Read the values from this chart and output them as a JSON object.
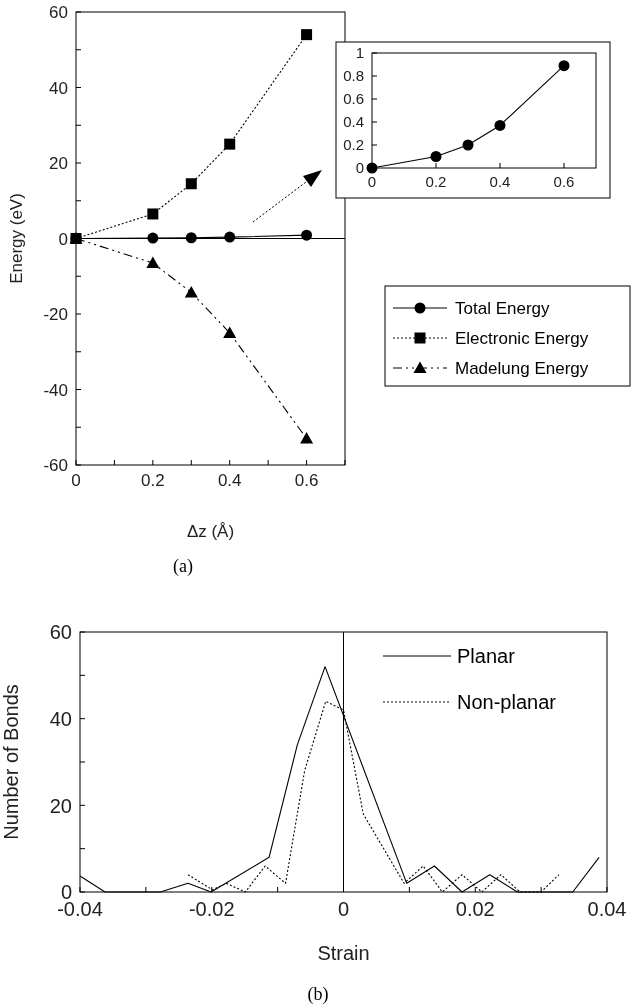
{
  "chart_data": [
    {
      "type": "line",
      "xlabel": "Δz (Å)",
      "ylabel": "Energy (eV)",
      "x": [
        0,
        0.2,
        0.3,
        0.4,
        0.6
      ],
      "xlim": [
        0,
        0.7
      ],
      "xticks": [
        0,
        {
          "value": 0.1,
          "label": null
        },
        0.2,
        {
          "value": 0.3,
          "label": null
        },
        0.4,
        {
          "value": 0.5,
          "label": null
        },
        0.6,
        {
          "value": 0.7,
          "label": null
        }
      ],
      "ylim": [
        -60,
        60
      ],
      "yticks": [
        -60,
        {
          "value": -50,
          "label": null
        },
        -40,
        {
          "value": -30,
          "label": null
        },
        -20,
        {
          "value": -10,
          "label": null
        },
        0,
        {
          "value": 10,
          "label": null
        },
        20,
        {
          "value": 30,
          "label": null
        },
        40,
        {
          "value": 50,
          "label": null
        },
        60
      ],
      "legend": "right",
      "grid": false,
      "series": [
        {
          "name": "Total Energy",
          "color": "#000000",
          "marker": "circle",
          "line_style": "solid",
          "values": [
            0,
            0.1,
            0.2,
            0.37,
            0.89
          ]
        },
        {
          "name": "Electronic Energy",
          "color": "#000000",
          "marker": "square",
          "line_style": "dotted",
          "values": [
            0,
            6.5,
            14.5,
            25,
            54
          ]
        },
        {
          "name": "Madelung Energy",
          "color": "#000000",
          "marker": "triangle",
          "line_style": "dashed",
          "values": [
            0,
            -6.5,
            -14.3,
            -25,
            -53
          ]
        }
      ],
      "ref_lines": [
        {
          "axis": "y",
          "value": 0,
          "color": "#000000",
          "line_style": "solid"
        }
      ],
      "annotations": [
        "(a)"
      ]
    },
    {
      "type": "line",
      "x": [
        0,
        0.2,
        0.3,
        0.4,
        0.6
      ],
      "xlim": [
        0,
        0.7
      ],
      "xticks": [
        0,
        0.2,
        0.4,
        0.6
      ],
      "ylim": [
        0,
        1
      ],
      "yticks": [
        0,
        0.2,
        0.4,
        0.6,
        0.8,
        1
      ],
      "grid": false,
      "series": [
        {
          "color": "#000000",
          "marker": "circle",
          "line_style": "solid",
          "values": [
            0,
            0.1,
            0.2,
            0.37,
            0.89
          ]
        }
      ]
    },
    {
      "type": "line",
      "xlabel": "Strain",
      "ylabel": "Number of Bonds",
      "xlim": [
        -0.04,
        0.04
      ],
      "xticks": [
        -0.04,
        {
          "value": -0.03,
          "label": null
        },
        -0.02,
        {
          "value": -0.01,
          "label": null
        },
        0,
        {
          "value": 0.01,
          "label": null
        },
        0.02,
        {
          "value": 0.03,
          "label": null
        },
        0.04
      ],
      "ylim": [
        0,
        60
      ],
      "yticks": [
        0,
        {
          "value": 10,
          "label": null
        },
        20,
        {
          "value": 30,
          "label": null
        },
        40,
        {
          "value": 50,
          "label": null
        },
        60
      ],
      "legend": "top right",
      "grid": false,
      "marker": "none",
      "series": [
        {
          "name": "Planar",
          "color": "#000000",
          "line_style": "solid",
          "x": [
            -0.04,
            -0.0362,
            -0.0278,
            -0.0236,
            -0.0201,
            -0.0113,
            -0.007,
            -0.0028,
            0.0096,
            0.0138,
            0.018,
            0.0222,
            0.0264,
            0.0348,
            0.0388
          ],
          "values": [
            3.7,
            0,
            0,
            2,
            0,
            8,
            34,
            52,
            2,
            6,
            0,
            4,
            0,
            0,
            8
          ]
        },
        {
          "name": "Non-planar",
          "color": "#000000",
          "line_style": "dotted",
          "x": [
            -0.0236,
            -0.0199,
            -0.0178,
            -0.0149,
            -0.0119,
            -0.0088,
            -0.0059,
            -0.0027,
            0,
            0.003,
            0.0092,
            0.0121,
            0.015,
            0.018,
            0.021,
            0.0239,
            0.0268,
            0.03,
            0.0327
          ],
          "values": [
            4,
            0.5,
            2,
            0,
            6,
            2,
            28,
            44,
            42,
            18,
            2,
            6,
            0,
            4,
            0,
            4,
            0,
            0,
            4
          ]
        }
      ],
      "ref_lines": [
        {
          "axis": "x",
          "value": 0,
          "color": "#000000",
          "line_style": "solid"
        }
      ],
      "annotations": [
        "(b)"
      ]
    }
  ]
}
